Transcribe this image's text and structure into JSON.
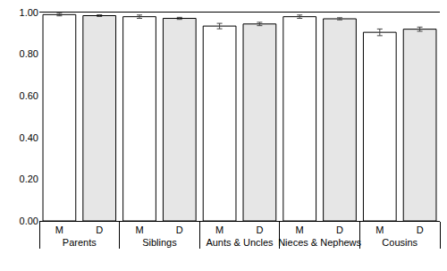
{
  "chart_data": {
    "type": "bar",
    "categories": [
      "Parents",
      "Siblings",
      "Aunts & Uncles",
      "Nieces & Nephews",
      "Cousins"
    ],
    "series": [
      {
        "name": "M",
        "color": "#ffffff",
        "values": [
          0.99,
          0.98,
          0.935,
          0.98,
          0.905
        ],
        "errors": [
          0.006,
          0.008,
          0.013,
          0.008,
          0.016
        ]
      },
      {
        "name": "D",
        "color": "#e6e6e6",
        "values": [
          0.985,
          0.972,
          0.945,
          0.97,
          0.92
        ],
        "errors": [
          0.004,
          0.005,
          0.008,
          0.005,
          0.01
        ]
      }
    ],
    "ylim": [
      0,
      1
    ],
    "yticks": [
      {
        "value": 0,
        "label": "0.00"
      },
      {
        "value": 0.2,
        "label": "0.20"
      },
      {
        "value": 0.4,
        "label": "0.40"
      },
      {
        "value": 0.6,
        "label": "0.60"
      },
      {
        "value": 0.8,
        "label": "0.80"
      },
      {
        "value": 1,
        "label": "1.00"
      }
    ],
    "grid": false
  }
}
